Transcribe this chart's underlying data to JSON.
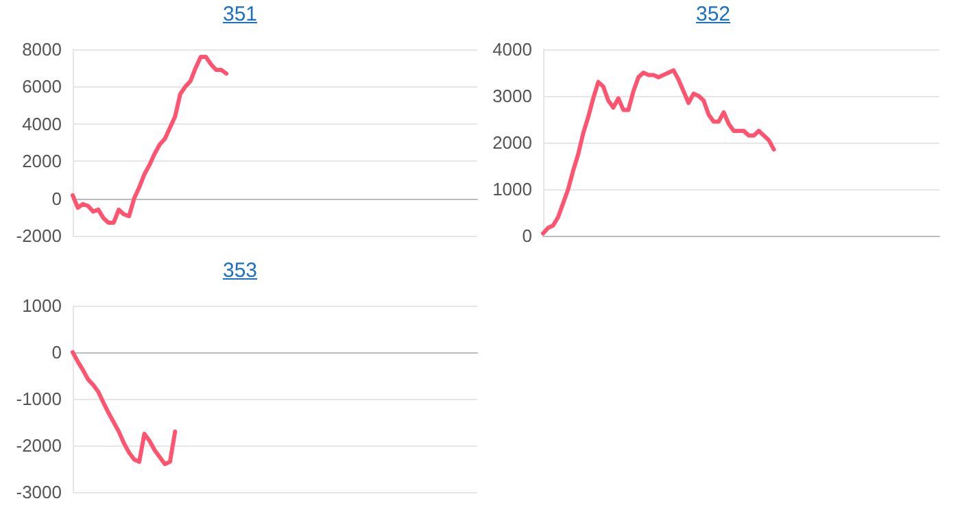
{
  "chart_data": [
    {
      "type": "line",
      "title": "351",
      "categories": [
        null,
        null,
        null,
        null,
        null,
        null,
        null,
        null,
        null,
        null,
        null,
        null,
        null,
        null,
        null,
        null,
        null,
        null,
        null,
        null,
        null,
        null,
        null,
        null,
        null,
        null,
        null,
        null,
        null,
        null,
        null,
        null,
        null,
        null,
        null,
        null,
        null,
        null,
        null,
        null,
        null,
        null,
        null,
        null,
        null,
        null,
        null,
        null,
        null,
        null,
        null,
        null,
        null,
        null,
        null,
        null,
        null,
        null,
        null,
        null,
        null,
        null,
        null,
        null,
        null,
        null,
        null,
        null,
        null,
        null,
        null,
        null,
        null,
        null,
        null,
        null,
        null,
        null,
        null,
        null
      ],
      "series": [
        {
          "color": "#ff5470",
          "values": [
            170,
            -500,
            -300,
            -400,
            -700,
            -600,
            -1050,
            -1300,
            -1300,
            -600,
            -850,
            -950,
            0,
            600,
            1300,
            1800,
            2400,
            2900,
            3200,
            3800,
            4400,
            5600,
            6000,
            6300,
            7000,
            7600,
            7600,
            7200,
            6900,
            6900,
            6700,
            null,
            null,
            null,
            null,
            null,
            null,
            null,
            null,
            null,
            null,
            null,
            null,
            null,
            null,
            null,
            null,
            null,
            null,
            null,
            null,
            null,
            null,
            null,
            null,
            null,
            null,
            null,
            null,
            null,
            null,
            null,
            null,
            null,
            null,
            null,
            null,
            null,
            null,
            null,
            null,
            null,
            null,
            null,
            null,
            null,
            null,
            null,
            null,
            null
          ]
        }
      ],
      "ylim": [
        -2000,
        8000
      ],
      "yticks": [
        -2000,
        0,
        2000,
        4000,
        6000,
        8000
      ],
      "grid": "y",
      "tick_labels": "y"
    },
    {
      "type": "line",
      "title": "352",
      "categories": [
        null,
        null,
        null,
        null,
        null,
        null,
        null,
        null,
        null,
        null,
        null,
        null,
        null,
        null,
        null,
        null,
        null,
        null,
        null,
        null,
        null,
        null,
        null,
        null,
        null,
        null,
        null,
        null,
        null,
        null,
        null,
        null,
        null,
        null,
        null,
        null,
        null,
        null,
        null,
        null,
        null,
        null,
        null,
        null,
        null,
        null,
        null,
        null,
        null,
        null,
        null,
        null,
        null,
        null,
        null,
        null,
        null,
        null,
        null,
        null,
        null,
        null,
        null,
        null,
        null,
        null,
        null,
        null,
        null,
        null,
        null,
        null,
        null,
        null,
        null,
        null,
        null,
        null,
        null,
        null
      ],
      "series": [
        {
          "color": "#ff5470",
          "values": [
            50,
            170,
            220,
            400,
            700,
            1000,
            1400,
            1750,
            2200,
            2550,
            2950,
            3300,
            3200,
            2900,
            2750,
            2950,
            2700,
            2700,
            3100,
            3400,
            3500,
            3450,
            3450,
            3400,
            3450,
            3500,
            3550,
            3350,
            3100,
            2850,
            3050,
            3000,
            2900,
            2600,
            2450,
            2450,
            2650,
            2400,
            2250,
            2250,
            2250,
            2150,
            2150,
            2250,
            2150,
            2050,
            1850,
            null,
            null,
            null,
            null,
            null,
            null,
            null,
            null,
            null,
            null,
            null,
            null,
            null,
            null,
            null,
            null,
            null,
            null,
            null,
            null,
            null,
            null,
            null,
            null,
            null,
            null,
            null,
            null,
            null,
            null,
            null,
            null,
            null
          ]
        }
      ],
      "ylim": [
        0,
        4000
      ],
      "yticks": [
        0,
        1000,
        2000,
        3000,
        4000
      ],
      "grid": "y",
      "tick_labels": "y"
    },
    {
      "type": "line",
      "title": "353",
      "categories": [
        null,
        null,
        null,
        null,
        null,
        null,
        null,
        null,
        null,
        null,
        null,
        null,
        null,
        null,
        null,
        null,
        null,
        null,
        null,
        null,
        null,
        null,
        null,
        null,
        null,
        null,
        null,
        null,
        null,
        null,
        null,
        null,
        null,
        null,
        null,
        null,
        null,
        null,
        null,
        null,
        null,
        null,
        null,
        null,
        null,
        null,
        null,
        null,
        null,
        null,
        null,
        null,
        null,
        null,
        null,
        null,
        null,
        null,
        null,
        null,
        null,
        null,
        null,
        null,
        null,
        null,
        null,
        null,
        null,
        null,
        null,
        null,
        null,
        null,
        null,
        null,
        null,
        null,
        null,
        null
      ],
      "series": [
        {
          "color": "#ff5470",
          "values": [
            0,
            -200,
            -380,
            -580,
            -700,
            -850,
            -1080,
            -1300,
            -1500,
            -1700,
            -1950,
            -2150,
            -2300,
            -2350,
            -1750,
            -1900,
            -2100,
            -2250,
            -2400,
            -2350,
            -1700,
            null,
            null,
            null,
            null,
            null,
            null,
            null,
            null,
            null,
            null,
            null,
            null,
            null,
            null,
            null,
            null,
            null,
            null,
            null,
            null,
            null,
            null,
            null,
            null,
            null,
            null,
            null,
            null,
            null,
            null,
            null,
            null,
            null,
            null,
            null,
            null,
            null,
            null,
            null,
            null,
            null,
            null,
            null,
            null,
            null,
            null,
            null,
            null,
            null,
            null,
            null,
            null,
            null,
            null,
            null,
            null,
            null,
            null,
            null
          ]
        }
      ],
      "ylim": [
        -3000,
        1000
      ],
      "yticks": [
        -3000,
        -2000,
        -1000,
        0,
        1000
      ],
      "grid": "y",
      "tick_labels": "y"
    }
  ]
}
